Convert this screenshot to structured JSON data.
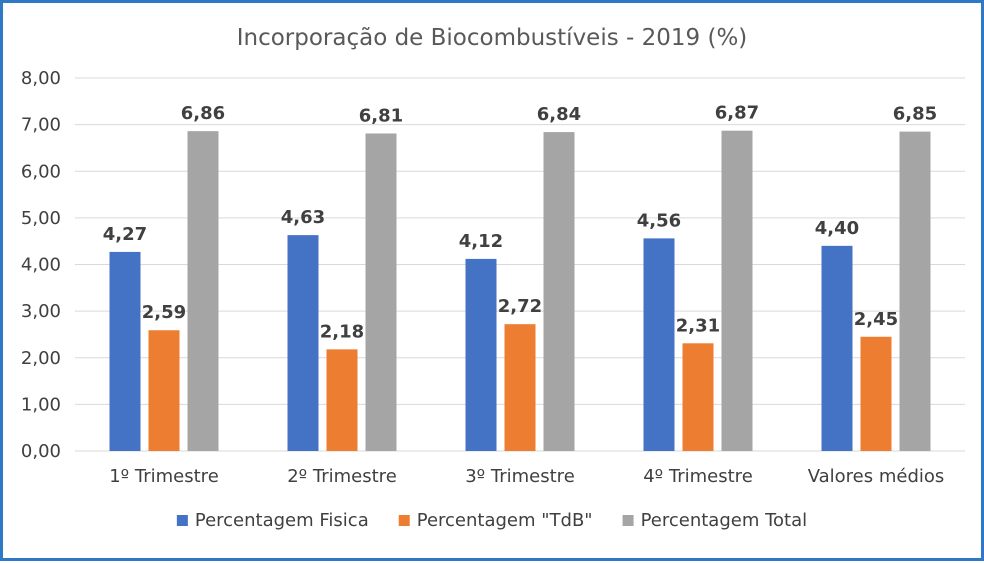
{
  "chart_data": {
    "type": "bar",
    "title": "Incorporação de Biocombustíveis - 2019 (%)",
    "categories": [
      "1º Trimestre",
      "2º Trimestre",
      "3º Trimestre",
      "4º Trimestre",
      "Valores médios"
    ],
    "series": [
      {
        "name": "Percentagem Fisica",
        "color": "#4472c4",
        "values": [
          4.27,
          4.63,
          4.12,
          4.56,
          4.4
        ],
        "labels": [
          "4,27",
          "4,63",
          "4,12",
          "4,56",
          "4,40"
        ]
      },
      {
        "name": "Percentagem \"TdB\"",
        "color": "#ed7d31",
        "values": [
          2.59,
          2.18,
          2.72,
          2.31,
          2.45
        ],
        "labels": [
          "2,59",
          "2,18",
          "2,72",
          "2,31",
          "2,45"
        ]
      },
      {
        "name": "Percentagem Total",
        "color": "#a5a5a5",
        "values": [
          6.86,
          6.81,
          6.84,
          6.87,
          6.85
        ],
        "labels": [
          "6,86",
          "6,81",
          "6,84",
          "6,87",
          "6,85"
        ]
      }
    ],
    "ylim": [
      0,
      8
    ],
    "yticks": [
      "0,00",
      "1,00",
      "2,00",
      "3,00",
      "4,00",
      "5,00",
      "6,00",
      "7,00",
      "8,00"
    ],
    "grid": true,
    "legend_position": "bottom"
  }
}
